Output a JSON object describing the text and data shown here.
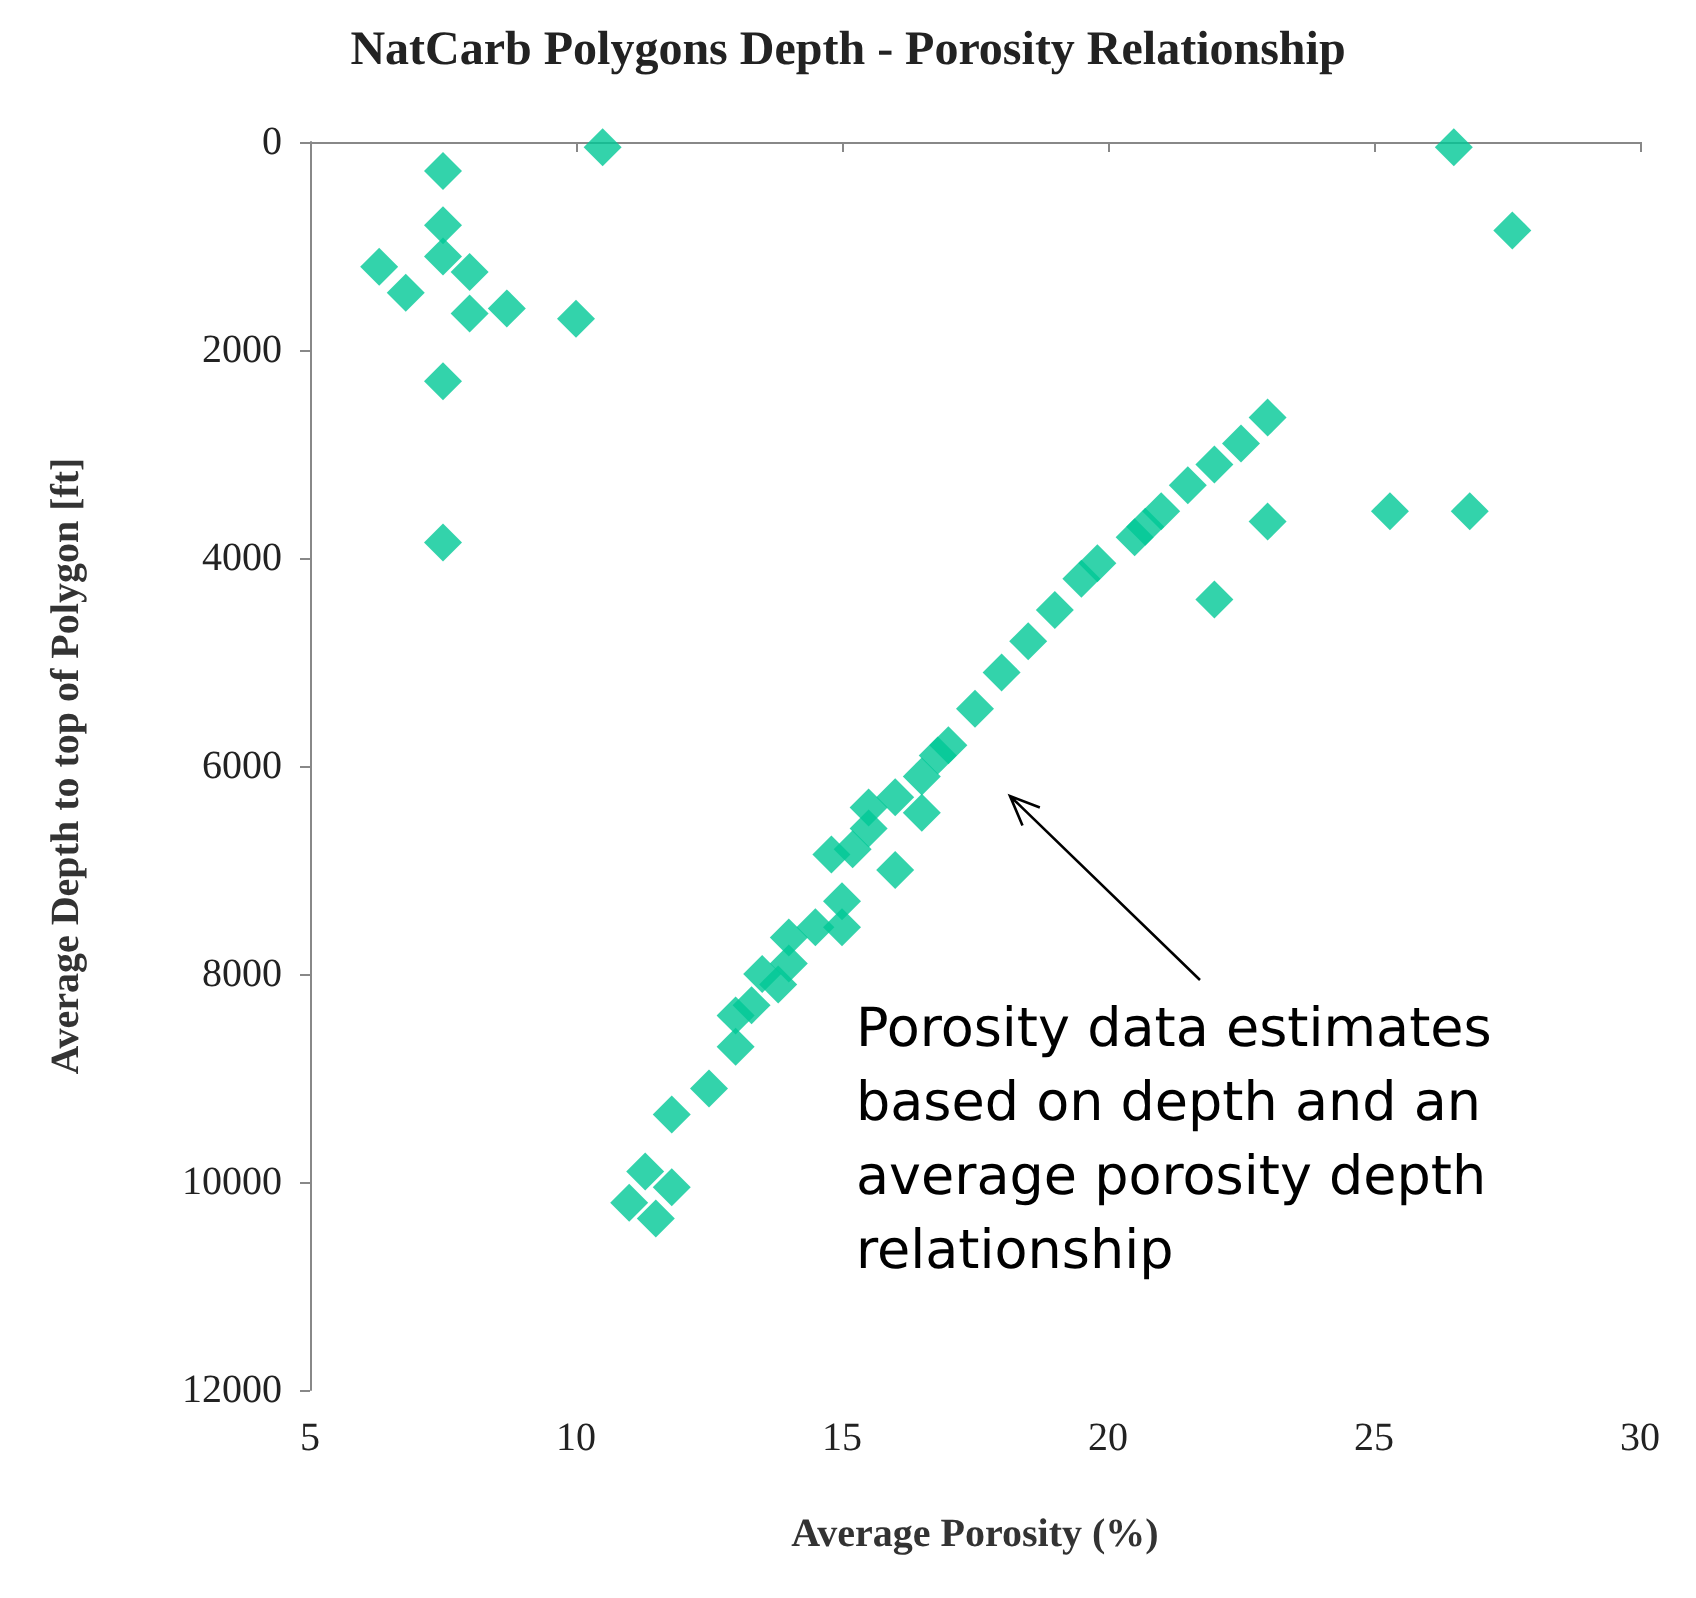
{
  "chart_data": {
    "type": "scatter",
    "title": "NatCarb Polygons Depth - Porosity Relationship",
    "xlabel": "Average Porosity (%)",
    "ylabel": "Average Depth to top of Polygon [ft]",
    "x": [
      6.3,
      6.8,
      7.5,
      7.5,
      7.5,
      8.0,
      8.0,
      8.7,
      7.5,
      7.5,
      10.0,
      10.5,
      26.5,
      27.6,
      25.3,
      26.8,
      23.0,
      22.0,
      23.0,
      22.5,
      22.0,
      21.5,
      21.0,
      20.7,
      20.5,
      19.8,
      19.5,
      19.0,
      18.5,
      18.0,
      17.5,
      17.0,
      16.8,
      16.5,
      16.5,
      16.0,
      15.5,
      15.5,
      15.2,
      16.0,
      14.8,
      15.0,
      15.0,
      14.5,
      14.0,
      14.0,
      13.8,
      13.5,
      13.3,
      13.2,
      13.0,
      13.0,
      12.5,
      11.8,
      11.3,
      11.0,
      11.5,
      11.8
    ],
    "series": [
      {
        "color": "#00c896",
        "values": [
          1200,
          1450,
          280,
          800,
          1100,
          1250,
          1650,
          1600,
          2300,
          3850,
          1700,
          50,
          50,
          850,
          3550,
          3550,
          3650,
          4400,
          2650,
          2900,
          3100,
          3300,
          3550,
          3700,
          3800,
          4050,
          4200,
          4500,
          4800,
          5100,
          5450,
          5800,
          5900,
          6100,
          6450,
          6300,
          6400,
          6600,
          6800,
          7000,
          6850,
          7300,
          7550,
          7550,
          7650,
          7900,
          8100,
          8000,
          8300,
          null,
          8400,
          8700,
          9100,
          9350,
          9900,
          10200,
          10350,
          10050
        ]
      }
    ],
    "xlim": [
      5,
      30
    ],
    "xticks": [
      5,
      10,
      15,
      20,
      25,
      30
    ],
    "ylim": [
      12000,
      0
    ],
    "yticks": [
      0,
      2000,
      4000,
      6000,
      8000,
      10000,
      12000
    ],
    "marker": "diamond",
    "grid": false,
    "annotations": [
      "Porosity data estimates based on depth and an average porosity depth relationship"
    ]
  }
}
